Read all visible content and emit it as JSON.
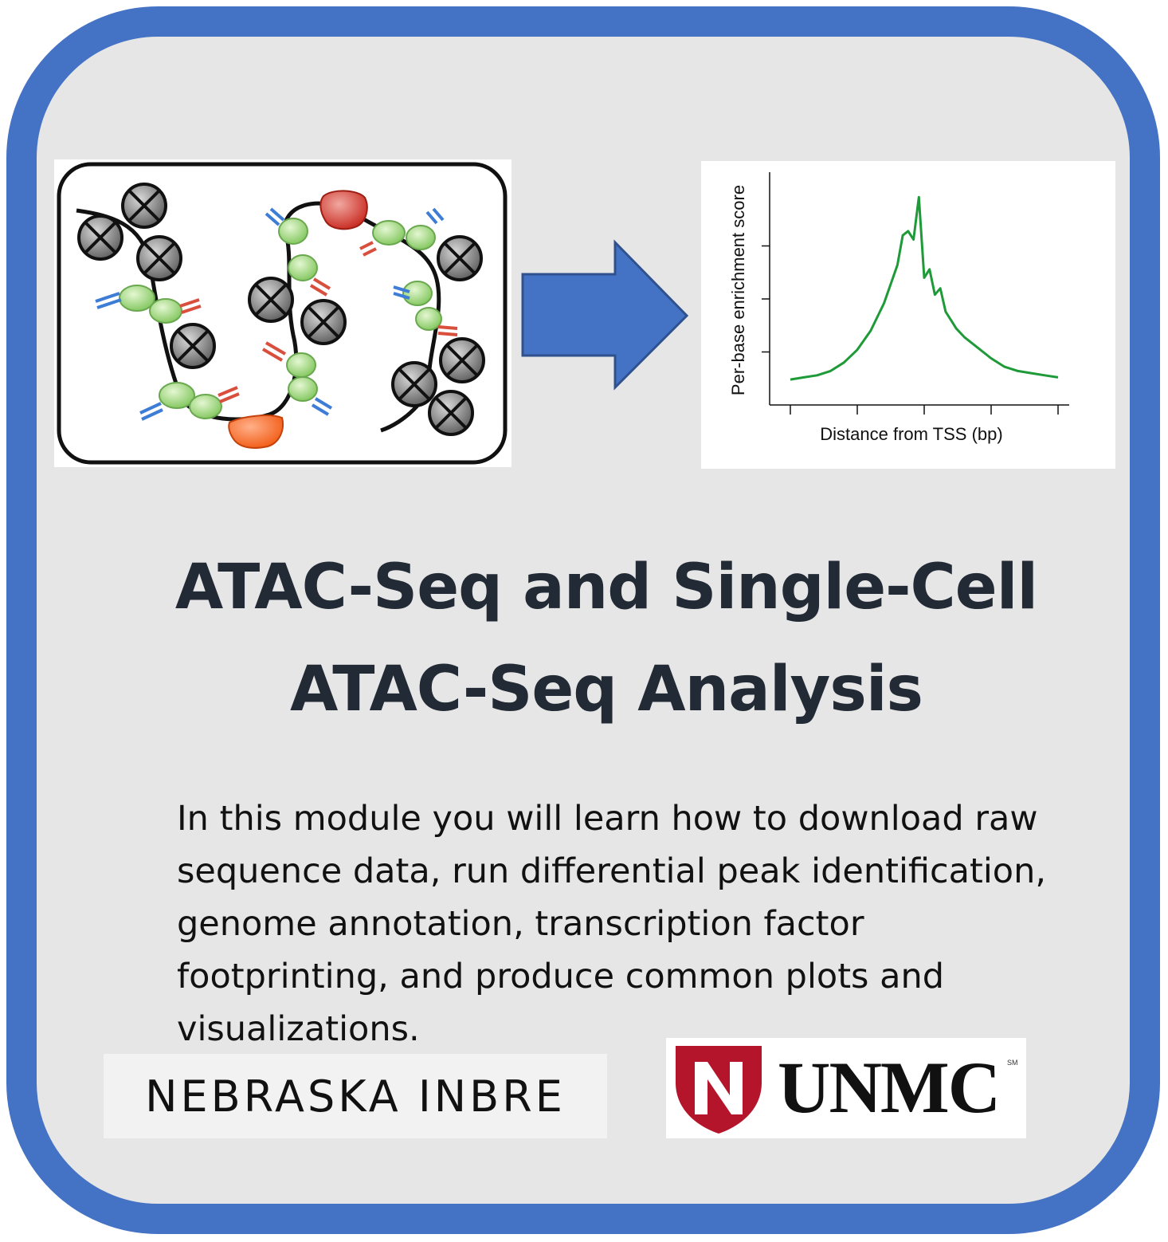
{
  "title": {
    "line1": "ATAC-Seq and Single-Cell",
    "line2": "ATAC-Seq Analysis"
  },
  "description": "In this module you will learn how to download raw sequence data, run differential peak identification, genome annotation, transcription factor footprinting, and produce common plots and visualizations.",
  "logos": {
    "nebraska": "NEBRASKA INBRE",
    "unmc": "UNMC",
    "unmc_mark": "SM"
  },
  "colors": {
    "border": "#4472c4",
    "background": "#e6e6e6",
    "arrow": "#4472c4",
    "curve": "#1e9a38",
    "unmc_red": "#b5152b"
  },
  "chart_data": {
    "type": "line",
    "xlabel": "Distance from TSS (bp)",
    "ylabel": "Per-base enrichment score",
    "x": [
      0,
      0.05,
      0.1,
      0.15,
      0.2,
      0.25,
      0.3,
      0.35,
      0.4,
      0.42,
      0.44,
      0.46,
      0.48,
      0.5,
      0.52,
      0.54,
      0.56,
      0.58,
      0.6,
      0.62,
      0.65,
      0.7,
      0.75,
      0.8,
      0.85,
      0.9,
      0.95,
      1.0
    ],
    "y": [
      0.12,
      0.13,
      0.14,
      0.16,
      0.2,
      0.26,
      0.35,
      0.48,
      0.66,
      0.8,
      0.82,
      0.78,
      0.98,
      0.6,
      0.64,
      0.52,
      0.55,
      0.44,
      0.4,
      0.36,
      0.32,
      0.27,
      0.22,
      0.18,
      0.16,
      0.15,
      0.14,
      0.13
    ],
    "xlim": [
      0,
      1
    ],
    "ylim": [
      0,
      1
    ],
    "grid": false,
    "legend": "none"
  }
}
